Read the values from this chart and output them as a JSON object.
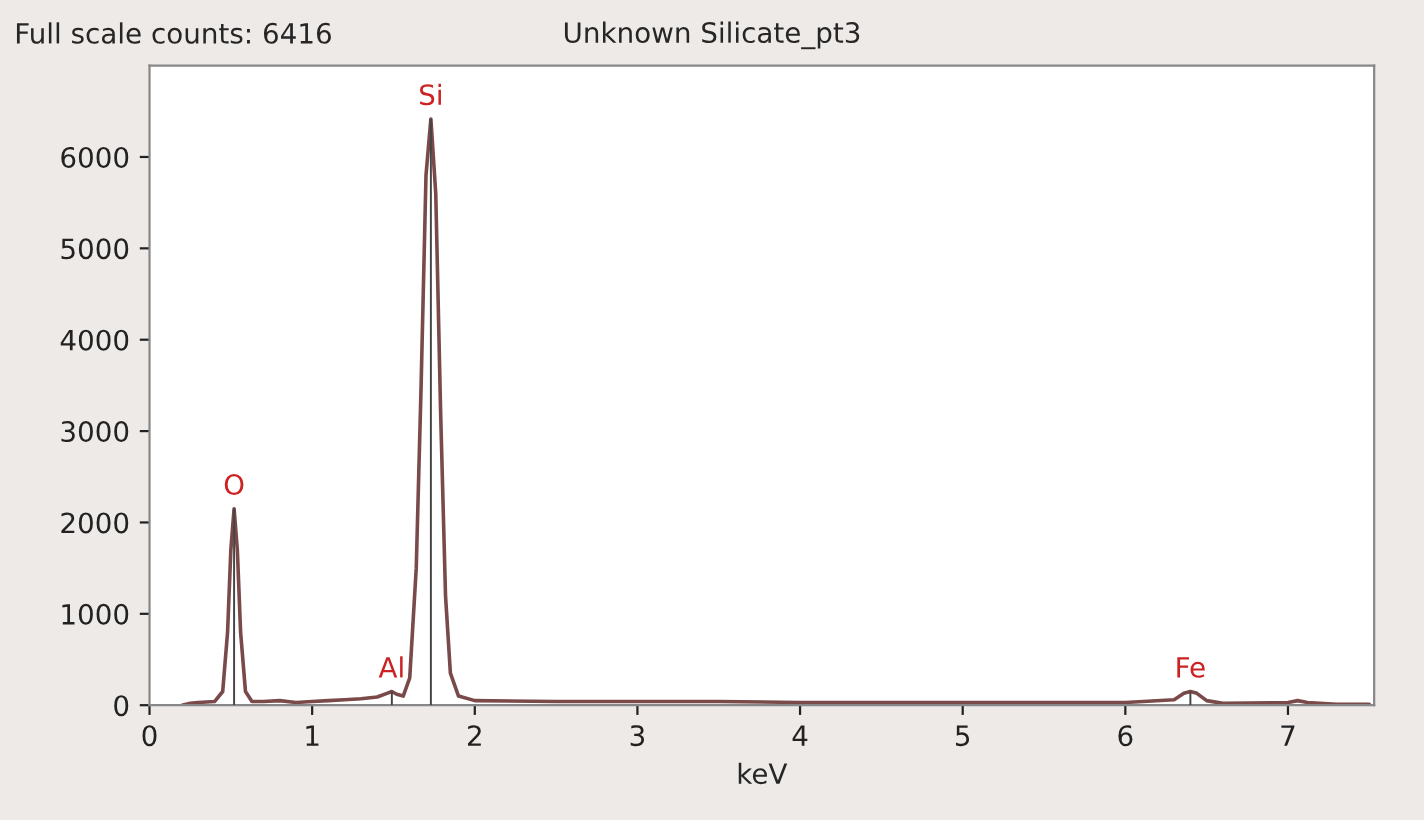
{
  "chart_data": {
    "type": "line",
    "title": "Unknown Silicate_pt3",
    "xlabel": "keV",
    "annotations": [
      "Full scale counts: 6416",
      {
        "text": "O",
        "x": 0.52,
        "y": 2150
      },
      {
        "text": "Al",
        "x": 1.49,
        "y": 150
      },
      {
        "text": "Si",
        "x": 1.73,
        "y": 6416
      },
      {
        "text": "Fe",
        "x": 6.4,
        "y": 150
      }
    ],
    "series": [
      {
        "type": "bar",
        "color": "#444444",
        "x": [
          0.52,
          1.49,
          1.73,
          6.4
        ],
        "values": [
          2150,
          150,
          6416,
          150
        ]
      },
      {
        "color": "#7a4a4a",
        "x": [
          0.2,
          0.25,
          0.3,
          0.4,
          0.45,
          0.48,
          0.5,
          0.52,
          0.54,
          0.56,
          0.59,
          0.63,
          0.7,
          0.8,
          0.9,
          1.0,
          1.1,
          1.2,
          1.3,
          1.4,
          1.46,
          1.49,
          1.52,
          1.56,
          1.6,
          1.64,
          1.67,
          1.7,
          1.73,
          1.76,
          1.79,
          1.82,
          1.85,
          1.9,
          2.0,
          2.5,
          3.0,
          3.5,
          4.0,
          5.0,
          6.0,
          6.3,
          6.36,
          6.4,
          6.44,
          6.5,
          6.6,
          7.0,
          7.06,
          7.12,
          7.3,
          7.5
        ],
        "values": [
          0,
          20,
          30,
          40,
          150,
          800,
          1700,
          2150,
          1700,
          800,
          150,
          40,
          40,
          50,
          30,
          40,
          50,
          60,
          70,
          90,
          130,
          150,
          120,
          100,
          300,
          1500,
          3500,
          5800,
          6416,
          5600,
          3200,
          1200,
          350,
          100,
          50,
          40,
          40,
          40,
          30,
          30,
          30,
          60,
          130,
          150,
          130,
          50,
          20,
          30,
          50,
          30,
          10,
          10
        ]
      }
    ],
    "xlim": [
      0,
      7.53
    ],
    "ylim": [
      0,
      7000
    ],
    "xticks": [
      0,
      1,
      2,
      3,
      4,
      5,
      6,
      7
    ],
    "yticks": [
      0,
      1000,
      2000,
      3000,
      4000,
      5000,
      6000
    ],
    "grid": false,
    "legend": false,
    "marker": "none",
    "line_style": "solid"
  }
}
